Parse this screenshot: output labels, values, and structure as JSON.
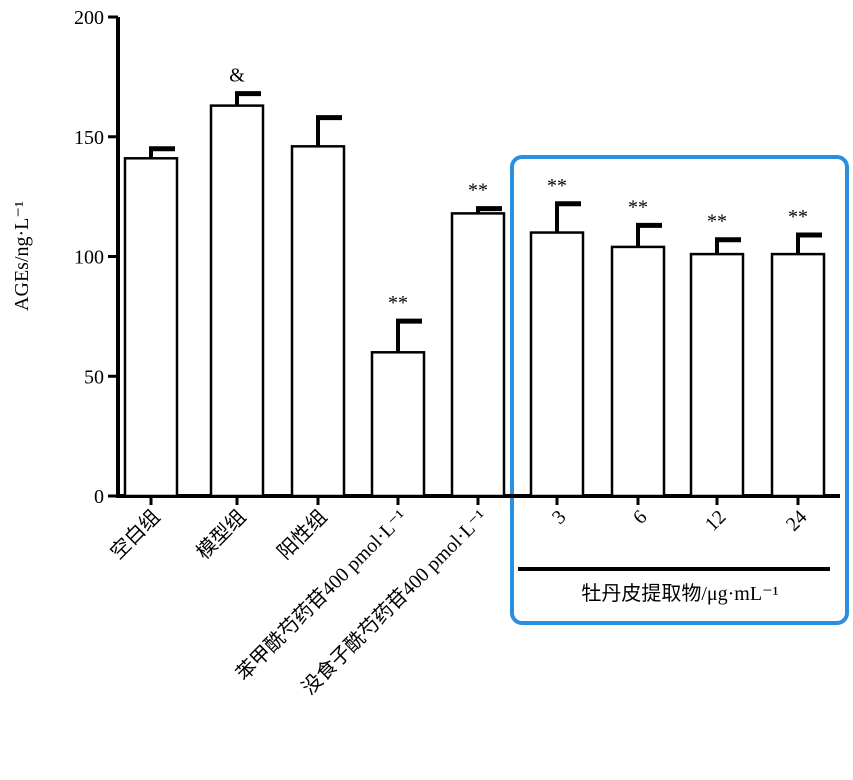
{
  "chart_data": {
    "type": "bar",
    "y_label": "AGEs/ng·L⁻¹",
    "categories": [
      "空白组",
      "模型组",
      "阳性组",
      "苯甲酰芍药苷400 pmol·L⁻¹",
      "没食子酰芍药苷400 pmol·L⁻¹",
      "3",
      "6",
      "12",
      "24"
    ],
    "values": [
      141,
      163,
      146,
      60,
      118,
      110,
      104,
      101,
      101
    ],
    "errors": [
      4,
      5,
      12,
      13,
      2,
      12,
      9,
      6,
      8
    ],
    "annotations": [
      null,
      "&",
      null,
      "**",
      "**",
      "**",
      "**",
      "**",
      "**"
    ],
    "group_label": "牡丹皮提取物/μg·mL⁻¹",
    "color": "#ffffff",
    "ylim": [
      0,
      200
    ],
    "yticks": [
      0,
      50,
      100,
      150,
      200
    ]
  }
}
